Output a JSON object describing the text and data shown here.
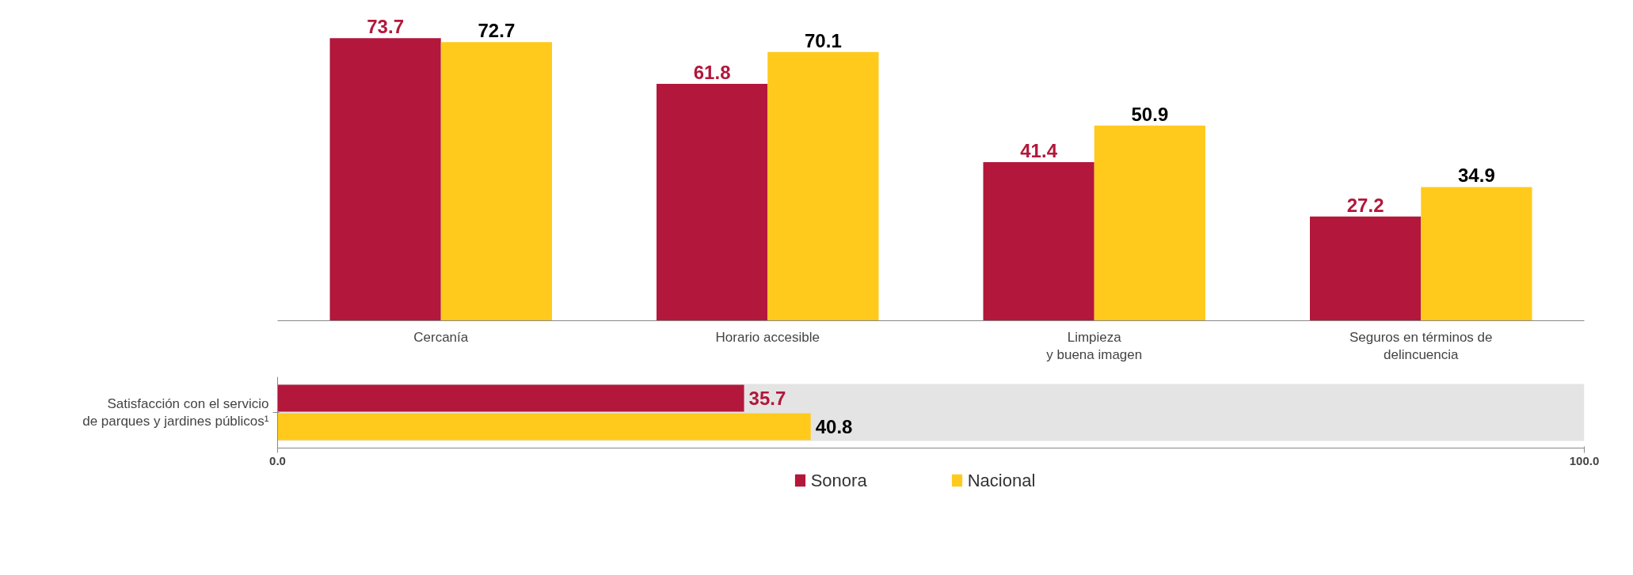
{
  "chart_data": [
    {
      "type": "bar",
      "categories": [
        "Cercanía",
        "Horario accesible",
        "Limpieza\ny buena imagen",
        "Seguros en términos de\ndelincuencia"
      ],
      "series": [
        {
          "color": "#b3173b",
          "values": [
            73.7,
            61.8,
            41.4,
            27.2
          ]
        },
        {
          "color": "#ffca1c",
          "values": [
            72.7,
            70.1,
            50.9,
            34.9
          ]
        }
      ],
      "data_labels": true
    },
    {
      "type": "bar",
      "orientation": "horizontal",
      "categories": [
        "Satisfacción con el servicio\nde parques y jardines públicos¹"
      ],
      "series": [
        {
          "name": "Sonora",
          "color": "#b3173b",
          "values": [
            35.7
          ]
        },
        {
          "name": "Nacional",
          "color": "#ffca1c",
          "values": [
            40.8
          ]
        }
      ],
      "xlim": [
        0,
        100
      ],
      "xticks": [
        {
          "value": 0,
          "label": "0.0"
        },
        {
          "value": 100,
          "label": "100.0"
        }
      ],
      "bands": [
        {
          "axis": "x",
          "from": 0,
          "to": 100,
          "color": "#e4e4e4"
        }
      ],
      "data_labels": true,
      "legend": "bottom"
    }
  ]
}
